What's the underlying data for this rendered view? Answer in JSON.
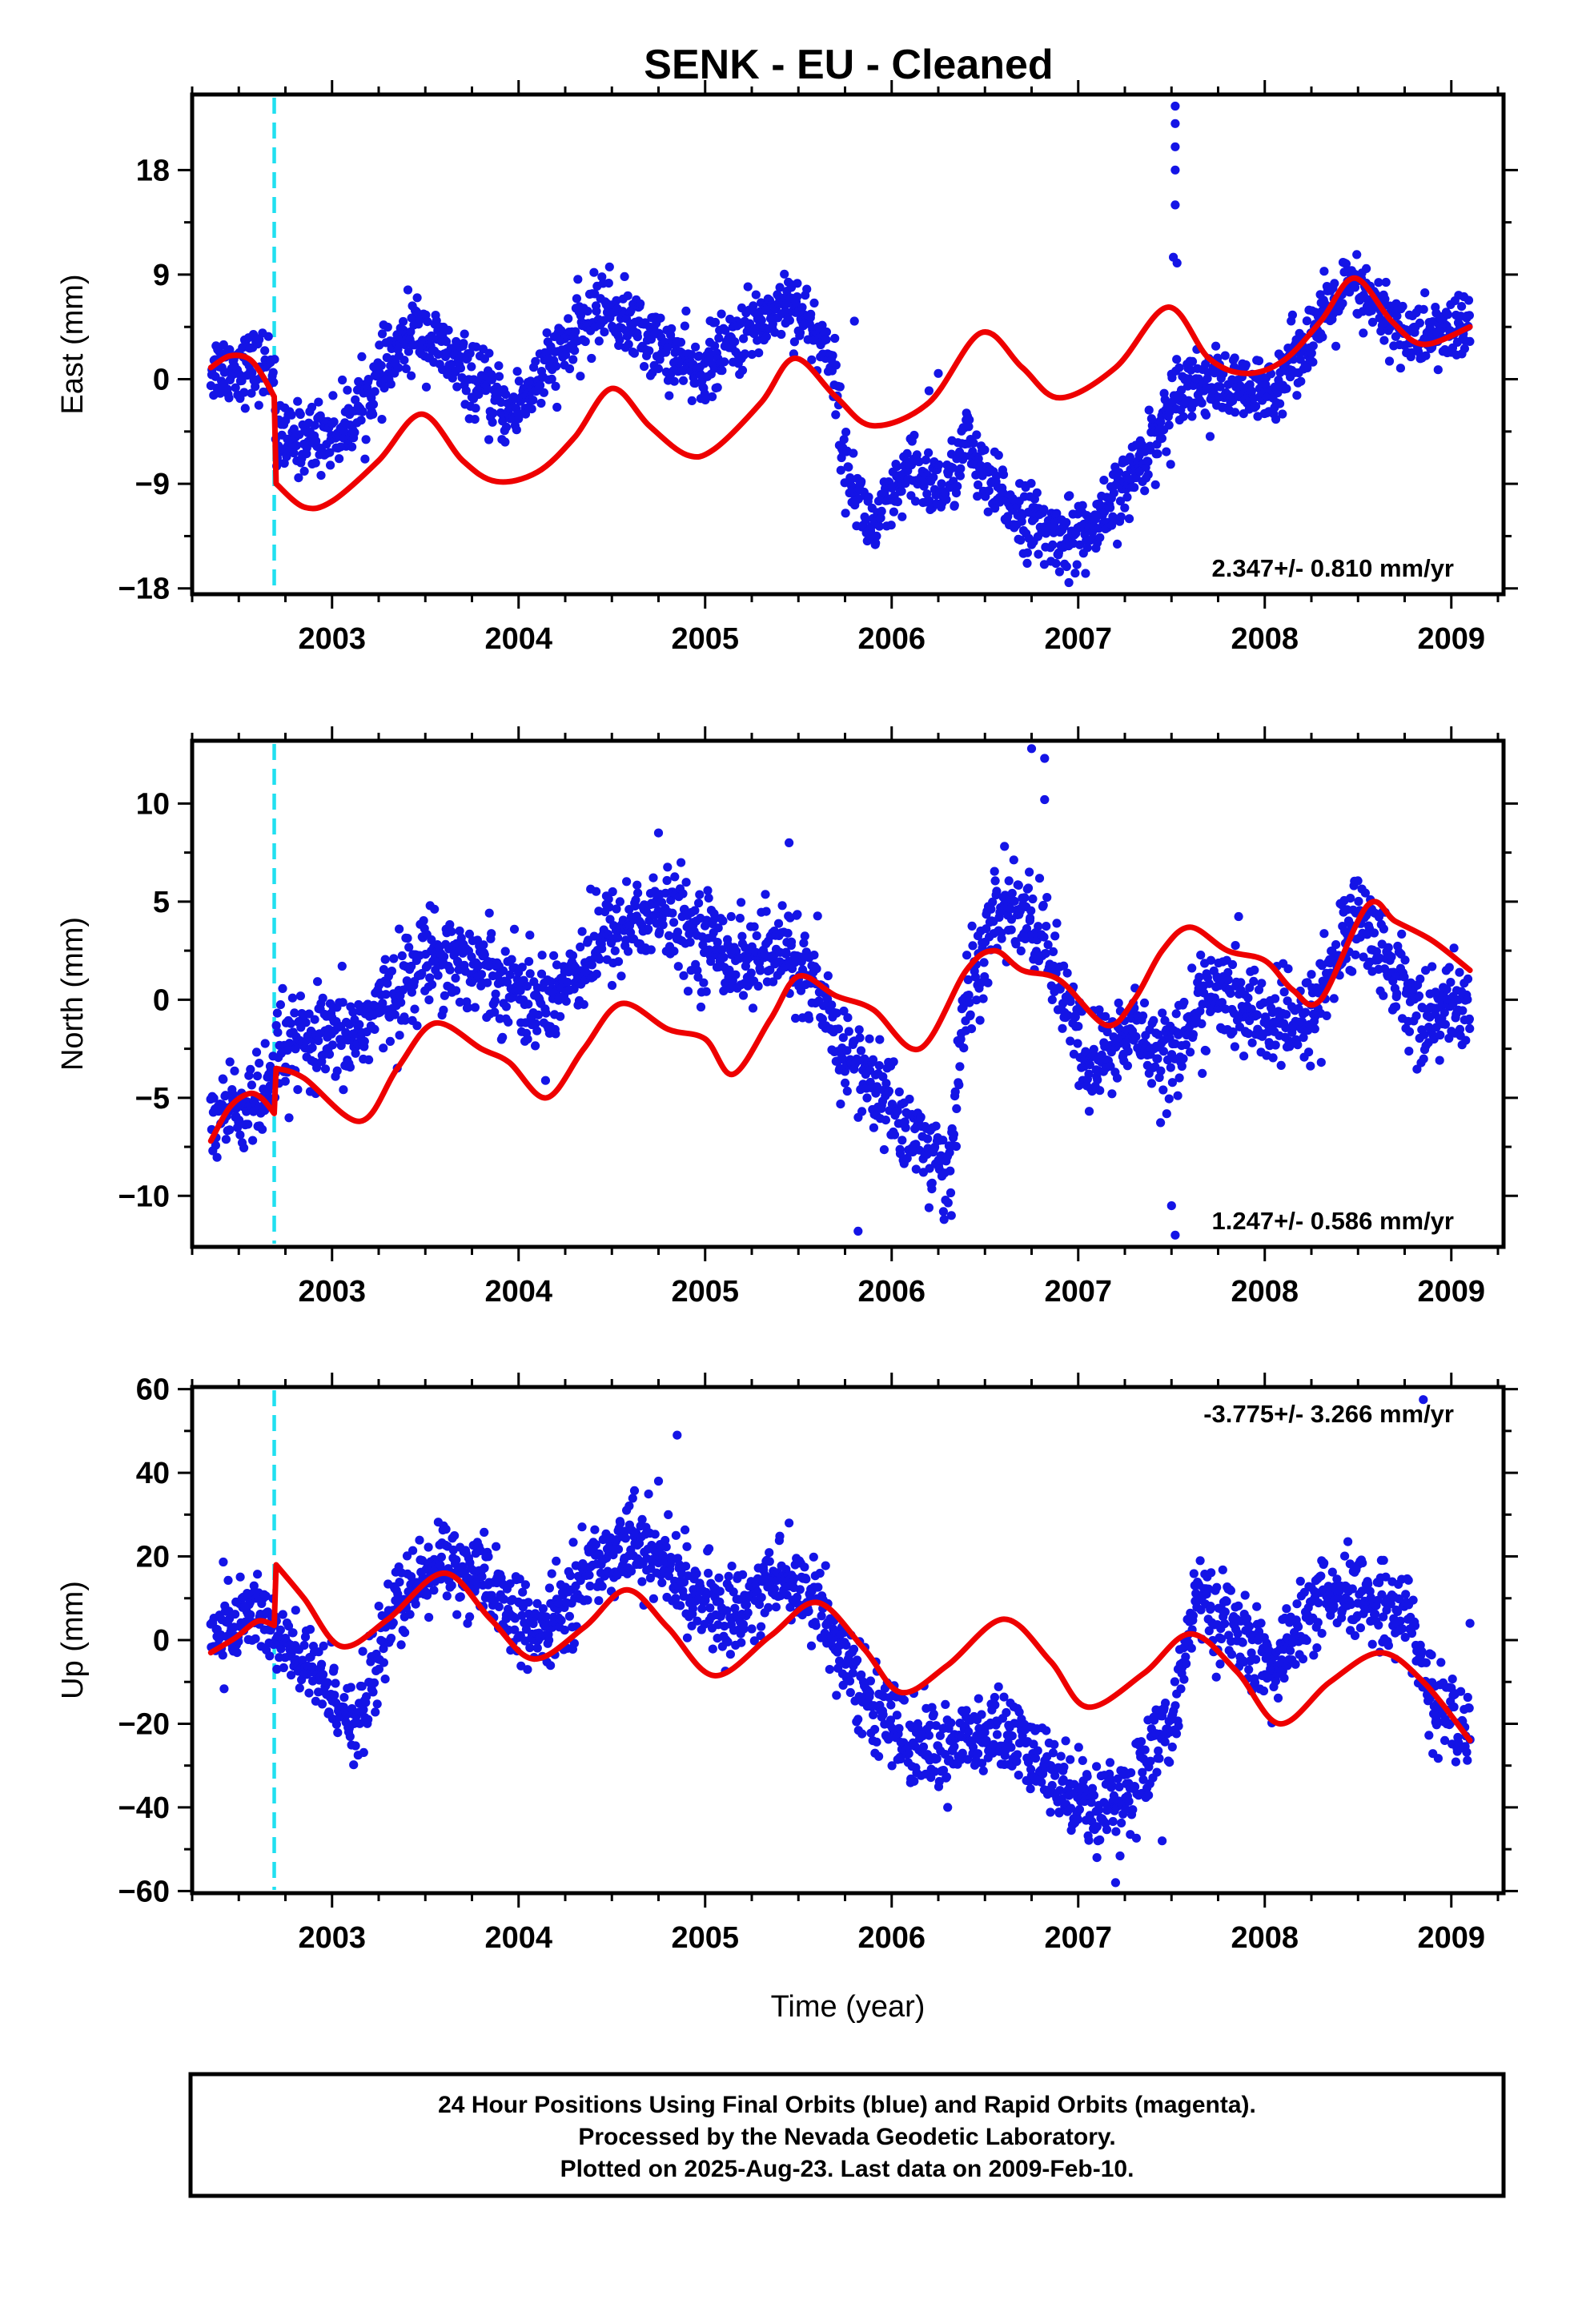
{
  "figure_title": "SENK  - EU - Cleaned",
  "footer": {
    "lines": [
      "24 Hour Positions Using Final Orbits (blue) and Rapid Orbits (magenta).",
      "Processed by the Nevada Geodetic Laboratory.",
      "Plotted on 2025-Aug-23. Last data on 2009-Feb-10."
    ]
  },
  "colors": {
    "points": "#1414e6",
    "model": "#ee0000",
    "event_line": "#20e0f0",
    "frame": "#000000"
  },
  "chart_data": [
    {
      "type": "scatter",
      "ylabel": "East (mm)",
      "xlabel": "",
      "xlim": [
        2002.25,
        2009.28
      ],
      "ylim": [
        -18.5,
        24.5
      ],
      "x_ticks": [
        2003,
        2004,
        2005,
        2006,
        2007,
        2008,
        2009
      ],
      "x_tick_labels": [
        "2003",
        "2004",
        "2005",
        "2006",
        "2007",
        "2008",
        "2009"
      ],
      "y_ticks": [
        -18,
        -9,
        0,
        9,
        18
      ],
      "y_tick_labels": [
        "−18",
        "−9",
        "0",
        "9",
        "18"
      ],
      "rate_label": "2.347+/- 0.810 mm/yr",
      "rate_position": "bottom-right",
      "event_line_x": 2002.69,
      "series": [
        {
          "kind": "points",
          "noise": 1.5,
          "profile": [
            [
              2002.35,
              1.0
            ],
            [
              2002.69,
              1.2
            ],
            [
              2002.7,
              -5.5
            ],
            [
              2003.05,
              -4.5
            ],
            [
              2003.45,
              4.5
            ],
            [
              2003.95,
              -3.0
            ],
            [
              2004.45,
              6.5
            ],
            [
              2004.95,
              0.5
            ],
            [
              2005.45,
              7.0
            ],
            [
              2005.68,
              2.0
            ],
            [
              2005.75,
              -7.5
            ],
            [
              2005.9,
              -13.0
            ],
            [
              2006.1,
              -8.0
            ],
            [
              2006.3,
              -9.5
            ],
            [
              2006.4,
              -5.0
            ],
            [
              2006.5,
              -9.0
            ],
            [
              2006.85,
              -13.5
            ],
            [
              2007.1,
              -13.0
            ],
            [
              2007.3,
              -8.0
            ],
            [
              2007.48,
              -3.0
            ],
            [
              2007.55,
              0.0
            ],
            [
              2008.0,
              -1.5
            ],
            [
              2008.45,
              8.0
            ],
            [
              2008.8,
              3.5
            ],
            [
              2009.1,
              4.5
            ]
          ],
          "outliers": [
            [
              2007.52,
              23.5
            ],
            [
              2007.52,
              22.0
            ],
            [
              2007.52,
              20.0
            ],
            [
              2007.52,
              18.0
            ],
            [
              2007.52,
              15.0
            ],
            [
              2007.51,
              10.5
            ],
            [
              2007.53,
              10.0
            ],
            [
              2006.2,
              -1.0
            ],
            [
              2006.25,
              0.5
            ],
            [
              2005.8,
              5.0
            ],
            [
              2006.95,
              -17.5
            ]
          ]
        },
        {
          "kind": "model",
          "x": [
            2002.35,
            2002.45,
            2002.55,
            2002.62,
            2002.69,
            2002.7,
            2002.85,
            2003.0,
            2003.25,
            2003.48,
            2003.7,
            2003.88,
            2004.1,
            2004.3,
            2004.5,
            2004.7,
            2004.9,
            2005.05,
            2005.3,
            2005.48,
            2005.7,
            2005.9,
            2006.2,
            2006.48,
            2006.7,
            2006.9,
            2007.2,
            2007.48,
            2007.7,
            2007.9,
            2008.1,
            2008.3,
            2008.48,
            2008.68,
            2008.85,
            2009.1
          ],
          "y": [
            1.0,
            2.0,
            1.8,
            0.5,
            -1.5,
            -9.0,
            -11.0,
            -10.5,
            -7.0,
            -3.0,
            -7.0,
            -8.8,
            -8.0,
            -5.0,
            -0.8,
            -4.0,
            -6.5,
            -6.0,
            -2.0,
            1.8,
            -1.5,
            -4.0,
            -2.0,
            4.0,
            1.0,
            -1.6,
            1.0,
            6.2,
            1.8,
            0.5,
            1.6,
            5.0,
            8.7,
            5.0,
            3.0,
            4.5
          ]
        }
      ]
    },
    {
      "type": "scatter",
      "ylabel": "North (mm)",
      "xlabel": "",
      "xlim": [
        2002.25,
        2009.28
      ],
      "ylim": [
        -12.6,
        13.2
      ],
      "x_ticks": [
        2003,
        2004,
        2005,
        2006,
        2007,
        2008,
        2009
      ],
      "x_tick_labels": [
        "2003",
        "2004",
        "2005",
        "2006",
        "2007",
        "2008",
        "2009"
      ],
      "y_ticks": [
        -10,
        -5,
        0,
        5,
        10
      ],
      "y_tick_labels": [
        "−10",
        "−5",
        "0",
        "5",
        "10"
      ],
      "rate_label": "1.247+/- 0.586 mm/yr",
      "rate_position": "bottom-right",
      "event_line_x": 2002.69,
      "series": [
        {
          "kind": "points",
          "noise": 1.2,
          "profile": [
            [
              2002.35,
              -6.0
            ],
            [
              2002.69,
              -5.0
            ],
            [
              2002.7,
              -2.5
            ],
            [
              2003.1,
              -2.0
            ],
            [
              2003.55,
              2.5
            ],
            [
              2003.95,
              1.0
            ],
            [
              2004.1,
              -0.5
            ],
            [
              2004.5,
              3.5
            ],
            [
              2004.75,
              4.5
            ],
            [
              2005.2,
              2.0
            ],
            [
              2005.48,
              2.5
            ],
            [
              2005.7,
              -2.0
            ],
            [
              2006.0,
              -5.5
            ],
            [
              2006.3,
              -9.0
            ],
            [
              2006.4,
              0.0
            ],
            [
              2006.6,
              5.0
            ],
            [
              2006.8,
              3.5
            ],
            [
              2007.05,
              -3.5
            ],
            [
              2007.3,
              -1.5
            ],
            [
              2007.5,
              -3.0
            ],
            [
              2007.7,
              0.5
            ],
            [
              2008.0,
              -1.0
            ],
            [
              2008.2,
              -1.5
            ],
            [
              2008.5,
              4.5
            ],
            [
              2008.85,
              -1.0
            ],
            [
              2009.1,
              0.0
            ]
          ],
          "outliers": [
            [
              2006.75,
              12.8
            ],
            [
              2006.82,
              12.3
            ],
            [
              2006.82,
              10.2
            ],
            [
              2005.82,
              -11.8
            ],
            [
              2006.32,
              -11.0
            ],
            [
              2007.52,
              -12.0
            ],
            [
              2007.5,
              -10.5
            ],
            [
              2004.75,
              8.5
            ],
            [
              2005.45,
              8.0
            ]
          ]
        },
        {
          "kind": "model",
          "x": [
            2002.35,
            2002.45,
            2002.55,
            2002.62,
            2002.69,
            2002.7,
            2002.85,
            2003.15,
            2003.35,
            2003.55,
            2003.8,
            2003.95,
            2004.15,
            2004.35,
            2004.55,
            2004.8,
            2005.0,
            2005.15,
            2005.35,
            2005.5,
            2005.7,
            2005.9,
            2006.15,
            2006.4,
            2006.55,
            2006.7,
            2006.9,
            2007.15,
            2007.3,
            2007.45,
            2007.6,
            2007.8,
            2008.0,
            2008.15,
            2008.3,
            2008.55,
            2008.7,
            2008.9,
            2009.1
          ],
          "y": [
            -7.2,
            -5.5,
            -4.8,
            -5.0,
            -5.8,
            -3.5,
            -4.0,
            -6.2,
            -3.5,
            -1.2,
            -2.5,
            -3.2,
            -5.0,
            -2.5,
            -0.2,
            -1.5,
            -2.0,
            -3.8,
            -1.0,
            1.2,
            0.2,
            -0.5,
            -2.5,
            1.5,
            2.5,
            1.5,
            1.0,
            -1.3,
            0.0,
            2.5,
            3.7,
            2.5,
            2.0,
            0.5,
            0.0,
            4.8,
            4.0,
            3.0,
            1.5
          ]
        }
      ]
    },
    {
      "type": "scatter",
      "ylabel": "Up (mm)",
      "xlabel": "Time (year)",
      "xlim": [
        2002.25,
        2009.28
      ],
      "ylim": [
        -60.5,
        60.5
      ],
      "x_ticks": [
        2003,
        2004,
        2005,
        2006,
        2007,
        2008,
        2009
      ],
      "x_tick_labels": [
        "2003",
        "2004",
        "2005",
        "2006",
        "2007",
        "2008",
        "2009"
      ],
      "y_ticks": [
        -60,
        -40,
        -20,
        0,
        20,
        40,
        60
      ],
      "y_tick_labels": [
        "−60",
        "−40",
        "−20",
        "0",
        "20",
        "40",
        "60"
      ],
      "rate_label": "-3.775+/- 3.266 mm/yr",
      "rate_position": "top-right",
      "event_line_x": 2002.69,
      "series": [
        {
          "kind": "points",
          "noise": 5.0,
          "profile": [
            [
              2002.35,
              0.0
            ],
            [
              2002.6,
              8.0
            ],
            [
              2002.69,
              2.0
            ],
            [
              2002.7,
              0.0
            ],
            [
              2002.9,
              -8.0
            ],
            [
              2003.15,
              -20.0
            ],
            [
              2003.3,
              5.0
            ],
            [
              2003.6,
              20.0
            ],
            [
              2003.9,
              10.0
            ],
            [
              2004.1,
              0.0
            ],
            [
              2004.35,
              15.0
            ],
            [
              2004.6,
              25.0
            ],
            [
              2004.85,
              15.0
            ],
            [
              2005.1,
              5.0
            ],
            [
              2005.4,
              15.0
            ],
            [
              2005.6,
              10.0
            ],
            [
              2005.8,
              -10.0
            ],
            [
              2006.1,
              -25.0
            ],
            [
              2006.35,
              -25.0
            ],
            [
              2006.6,
              -22.0
            ],
            [
              2006.85,
              -32.0
            ],
            [
              2007.1,
              -40.0
            ],
            [
              2007.3,
              -35.0
            ],
            [
              2007.5,
              -20.0
            ],
            [
              2007.62,
              10.0
            ],
            [
              2007.9,
              0.0
            ],
            [
              2008.05,
              -8.0
            ],
            [
              2008.25,
              8.0
            ],
            [
              2008.5,
              10.0
            ],
            [
              2008.75,
              8.0
            ],
            [
              2008.9,
              -15.0
            ],
            [
              2009.1,
              -22.0
            ]
          ],
          "outliers": [
            [
              2004.85,
              49.0
            ],
            [
              2008.85,
              57.5
            ],
            [
              2005.45,
              28.0
            ],
            [
              2004.75,
              38.0
            ],
            [
              2007.2,
              -58.0
            ],
            [
              2006.3,
              -40.0
            ],
            [
              2007.1,
              -52.0
            ],
            [
              2007.45,
              -48.0
            ],
            [
              2009.1,
              4.0
            ]
          ]
        },
        {
          "kind": "model",
          "x": [
            2002.35,
            2002.48,
            2002.6,
            2002.69,
            2002.7,
            2002.85,
            2003.05,
            2003.3,
            2003.6,
            2003.85,
            2004.08,
            2004.35,
            2004.58,
            2004.8,
            2005.05,
            2005.35,
            2005.6,
            2005.85,
            2006.05,
            2006.3,
            2006.6,
            2006.85,
            2007.05,
            2007.35,
            2007.6,
            2007.85,
            2008.08,
            2008.35,
            2008.62,
            2008.85,
            2009.1
          ],
          "y": [
            -3.0,
            0.5,
            4.5,
            3.5,
            18.0,
            10.0,
            -1.5,
            5.0,
            16.0,
            5.0,
            -4.5,
            3.0,
            12.0,
            3.0,
            -8.5,
            1.0,
            9.0,
            -2.0,
            -12.5,
            -6.0,
            5.0,
            -5.0,
            -16.0,
            -8.0,
            1.5,
            -7.5,
            -20.0,
            -10.0,
            -3.0,
            -10.0,
            -24.0
          ]
        }
      ]
    }
  ]
}
